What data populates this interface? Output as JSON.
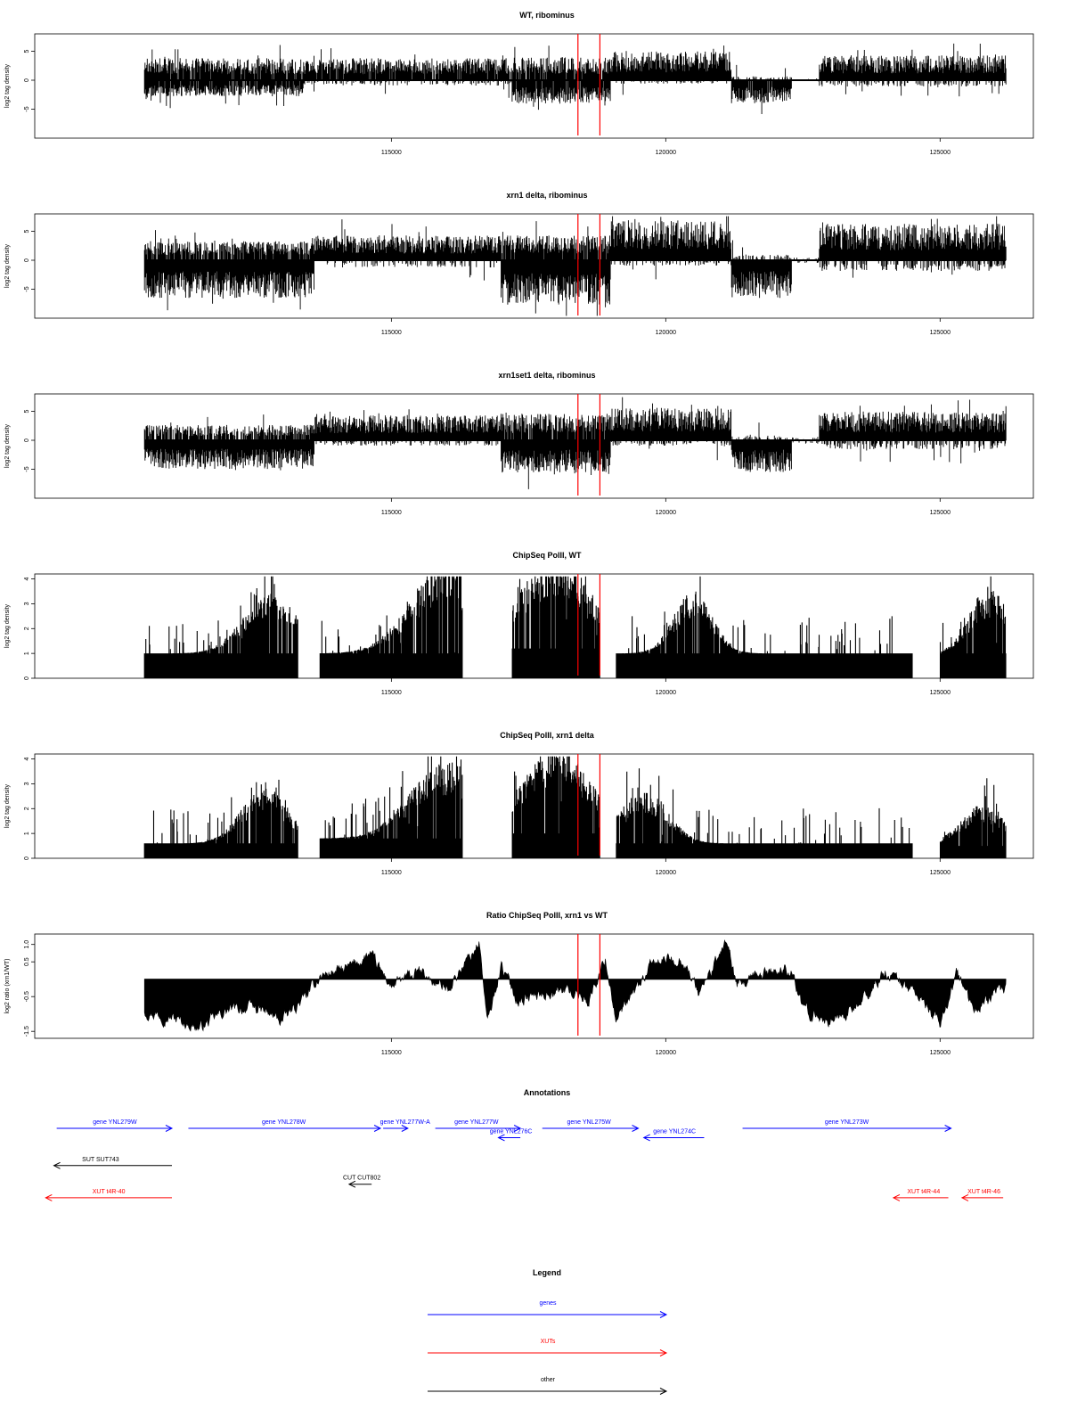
{
  "figure": {
    "panels": [
      {
        "title": "WT, ribominus",
        "ylabel": "log2 tag density",
        "type": "bipolar",
        "ylim": [
          -10,
          8
        ],
        "yticks": [
          "5",
          "0",
          "-5"
        ],
        "ytick_values": [
          5,
          0,
          -5
        ],
        "seed": 11,
        "profile": [
          {
            "from": 110500,
            "to": 113400,
            "pos": 2.3,
            "neg": 1.8,
            "posProb": 0.95,
            "negProb": 0.9
          },
          {
            "from": 113400,
            "to": 117200,
            "pos": 2.3,
            "neg": 0.6,
            "posProb": 0.95,
            "negProb": 0.25
          },
          {
            "from": 117200,
            "to": 119000,
            "pos": 2.4,
            "neg": 2.6,
            "posProb": 0.9,
            "negProb": 0.9
          },
          {
            "from": 119000,
            "to": 121200,
            "pos": 3.0,
            "neg": 0.4,
            "posProb": 1.0,
            "negProb": 0.2
          },
          {
            "from": 121200,
            "to": 122300,
            "pos": 0.4,
            "neg": 2.6,
            "posProb": 0.3,
            "negProb": 0.95
          },
          {
            "from": 122300,
            "to": 122800,
            "pos": 0.2,
            "neg": 0.2,
            "posProb": 0.05,
            "negProb": 0.05
          },
          {
            "from": 122800,
            "to": 126200,
            "pos": 2.6,
            "neg": 0.7,
            "posProb": 1.0,
            "negProb": 0.3
          }
        ]
      },
      {
        "title": "xrn1 delta, ribominus",
        "ylabel": "log2 tag density",
        "type": "bipolar",
        "ylim": [
          -10,
          8
        ],
        "yticks": [
          "5",
          "0",
          "-5"
        ],
        "ytick_values": [
          5,
          0,
          -5
        ],
        "seed": 23,
        "profile": [
          {
            "from": 110500,
            "to": 113600,
            "pos": 2.0,
            "neg": 4.2,
            "posProb": 0.85,
            "negProb": 1.0
          },
          {
            "from": 113600,
            "to": 117000,
            "pos": 2.6,
            "neg": 0.8,
            "posProb": 1.0,
            "negProb": 0.25
          },
          {
            "from": 117000,
            "to": 119000,
            "pos": 2.6,
            "neg": 5.0,
            "posProb": 0.9,
            "negProb": 1.0
          },
          {
            "from": 119000,
            "to": 121200,
            "pos": 4.2,
            "neg": 0.6,
            "posProb": 1.0,
            "negProb": 0.25
          },
          {
            "from": 121200,
            "to": 122300,
            "pos": 0.6,
            "neg": 4.2,
            "posProb": 0.3,
            "negProb": 1.0
          },
          {
            "from": 122300,
            "to": 122800,
            "pos": 0.3,
            "neg": 0.3,
            "posProb": 0.1,
            "negProb": 0.1
          },
          {
            "from": 122800,
            "to": 126200,
            "pos": 3.8,
            "neg": 1.2,
            "posProb": 1.0,
            "negProb": 0.35
          }
        ]
      },
      {
        "title": "xrn1set1 delta, ribominus",
        "ylabel": "log2 tag density",
        "type": "bipolar",
        "ylim": [
          -10,
          8
        ],
        "yticks": [
          "5",
          "0",
          "-5"
        ],
        "ytick_values": [
          5,
          0,
          -5
        ],
        "seed": 37,
        "profile": [
          {
            "from": 110500,
            "to": 113600,
            "pos": 1.6,
            "neg": 3.2,
            "posProb": 0.75,
            "negProb": 1.0
          },
          {
            "from": 113600,
            "to": 117000,
            "pos": 2.6,
            "neg": 0.6,
            "posProb": 1.0,
            "negProb": 0.25
          },
          {
            "from": 117000,
            "to": 119000,
            "pos": 2.8,
            "neg": 3.6,
            "posProb": 0.9,
            "negProb": 1.0
          },
          {
            "from": 119000,
            "to": 121200,
            "pos": 3.4,
            "neg": 0.6,
            "posProb": 1.0,
            "negProb": 0.25
          },
          {
            "from": 121200,
            "to": 122300,
            "pos": 0.5,
            "neg": 3.6,
            "posProb": 0.3,
            "negProb": 1.0
          },
          {
            "from": 122300,
            "to": 122800,
            "pos": 0.4,
            "neg": 0.4,
            "posProb": 0.15,
            "negProb": 0.15
          },
          {
            "from": 122800,
            "to": 126200,
            "pos": 3.0,
            "neg": 1.0,
            "posProb": 1.0,
            "negProb": 0.35
          }
        ]
      },
      {
        "title": "ChipSeq PolII, WT",
        "ylabel": "log2 tag density",
        "type": "density",
        "ylim": [
          0,
          4.2
        ],
        "yticks": [
          "0",
          "1",
          "2",
          "3",
          "4"
        ],
        "ytick_values": [
          0,
          1,
          2,
          3,
          4
        ],
        "seed": 53,
        "profile": [
          {
            "from": 110500,
            "to": 113300,
            "base": 1.0,
            "amp": 2.3,
            "peak": 112800,
            "width": 700
          },
          {
            "from": 113300,
            "to": 113700,
            "gap": true
          },
          {
            "from": 113700,
            "to": 116300,
            "base": 1.0,
            "amp": 3.5,
            "peak": 116000,
            "width": 900
          },
          {
            "from": 116300,
            "to": 117200,
            "gap": true
          },
          {
            "from": 117200,
            "to": 118800,
            "base": 1.2,
            "amp": 3.7,
            "peak": 118000,
            "width": 900
          },
          {
            "from": 118800,
            "to": 119100,
            "gap": true
          },
          {
            "from": 119100,
            "to": 124500,
            "base": 1.0,
            "amp": 2.4,
            "peak": 120500,
            "width": 500
          },
          {
            "from": 124500,
            "to": 125000,
            "gap": true
          },
          {
            "from": 125000,
            "to": 126200,
            "base": 1.0,
            "amp": 2.6,
            "peak": 125900,
            "width": 500
          }
        ]
      },
      {
        "title": "ChipSeq PolII, xrn1 delta",
        "ylabel": "log2 tag density",
        "type": "density",
        "ylim": [
          0,
          4.2
        ],
        "yticks": [
          "0",
          "1",
          "2",
          "3",
          "4"
        ],
        "ytick_values": [
          0,
          1,
          2,
          3,
          4
        ],
        "seed": 71,
        "profile": [
          {
            "from": 110500,
            "to": 113300,
            "base": 0.6,
            "amp": 2.2,
            "peak": 112700,
            "width": 600
          },
          {
            "from": 113300,
            "to": 113700,
            "gap": true
          },
          {
            "from": 113700,
            "to": 116300,
            "base": 0.8,
            "amp": 3.0,
            "peak": 116000,
            "width": 900
          },
          {
            "from": 116300,
            "to": 117200,
            "gap": true
          },
          {
            "from": 117200,
            "to": 118800,
            "base": 1.0,
            "amp": 3.3,
            "peak": 118000,
            "width": 900
          },
          {
            "from": 118800,
            "to": 119100,
            "gap": true
          },
          {
            "from": 119100,
            "to": 124500,
            "base": 0.6,
            "amp": 2.1,
            "peak": 119600,
            "width": 600
          },
          {
            "from": 124500,
            "to": 125000,
            "gap": true
          },
          {
            "from": 125000,
            "to": 126200,
            "base": 0.5,
            "amp": 1.6,
            "peak": 125800,
            "width": 600
          }
        ]
      },
      {
        "title": "Ratio ChipSeq PolII, xrn1 vs WT",
        "ylabel": "log2 ratio (xrn1/WT)",
        "type": "ratio",
        "ylim": [
          -1.7,
          1.3
        ],
        "yticks": [
          "1.0",
          "0.5",
          "-0.5",
          "-1.5"
        ],
        "ytick_values": [
          1.0,
          0.5,
          -0.5,
          -1.5
        ],
        "seed": 97,
        "profile": [
          {
            "x": 110500,
            "y": -0.9
          },
          {
            "x": 111000,
            "y": -1.1
          },
          {
            "x": 111500,
            "y": -1.4
          },
          {
            "x": 112000,
            "y": -0.9
          },
          {
            "x": 112500,
            "y": -0.8
          },
          {
            "x": 113000,
            "y": -1.2
          },
          {
            "x": 113500,
            "y": -0.4
          },
          {
            "x": 113700,
            "y": 0.1
          },
          {
            "x": 114200,
            "y": 0.3
          },
          {
            "x": 114600,
            "y": 0.7
          },
          {
            "x": 115000,
            "y": -0.2
          },
          {
            "x": 115500,
            "y": 0.2
          },
          {
            "x": 116000,
            "y": -0.3
          },
          {
            "x": 116500,
            "y": 0.8
          },
          {
            "x": 116600,
            "y": 1.1
          },
          {
            "x": 116750,
            "y": -1.3
          },
          {
            "x": 117000,
            "y": 0.4
          },
          {
            "x": 117300,
            "y": -0.6
          },
          {
            "x": 117800,
            "y": -0.4
          },
          {
            "x": 118200,
            "y": -0.3
          },
          {
            "x": 118600,
            "y": -0.6
          },
          {
            "x": 118900,
            "y": 0.6
          },
          {
            "x": 119100,
            "y": -1.2
          },
          {
            "x": 119500,
            "y": -0.2
          },
          {
            "x": 119800,
            "y": 0.5
          },
          {
            "x": 120300,
            "y": 0.6
          },
          {
            "x": 120600,
            "y": -0.4
          },
          {
            "x": 121000,
            "y": 0.7
          },
          {
            "x": 121100,
            "y": 1.2
          },
          {
            "x": 121300,
            "y": -0.3
          },
          {
            "x": 121800,
            "y": 0.2
          },
          {
            "x": 122300,
            "y": 0.3
          },
          {
            "x": 122500,
            "y": -0.9
          },
          {
            "x": 123000,
            "y": -1.2
          },
          {
            "x": 123500,
            "y": -0.8
          },
          {
            "x": 124000,
            "y": 0.2
          },
          {
            "x": 124500,
            "y": -0.3
          },
          {
            "x": 125000,
            "y": -1.3
          },
          {
            "x": 125300,
            "y": 0.2
          },
          {
            "x": 125600,
            "y": -0.9
          },
          {
            "x": 126000,
            "y": -0.4
          },
          {
            "x": 126200,
            "y": -0.3
          }
        ]
      }
    ],
    "xticks": [
      115000,
      120000,
      125000
    ],
    "xtick_labels": [
      "115000",
      "120000",
      "125000"
    ],
    "xrange": [
      108500,
      126700
    ],
    "data_xrange": [
      110500,
      126200
    ],
    "red_lines": [
      118400,
      118800
    ],
    "red_line_color": "#ff0000",
    "bar_color": "#000000"
  },
  "annotations": {
    "title": "Annotations",
    "features": [
      {
        "label": "gene YNL279W",
        "type": "gene",
        "x1": 108900,
        "x2": 111000,
        "dir": "right",
        "row": 0,
        "label_x": 109960
      },
      {
        "label": "gene YNL278W",
        "type": "gene",
        "x1": 111300,
        "x2": 114800,
        "dir": "right",
        "row": 0,
        "label_x": 113040
      },
      {
        "label": "gene YNL277W-A",
        "type": "gene",
        "x1": 114850,
        "x2": 115300,
        "dir": "right",
        "row": 0,
        "label_x": 115250
      },
      {
        "label": "gene YNL277W",
        "type": "gene",
        "x1": 115800,
        "x2": 117350,
        "dir": "right",
        "row": 0,
        "label_x": 116550
      },
      {
        "label": "gene YNL276C",
        "type": "gene",
        "x1": 116950,
        "x2": 117350,
        "dir": "left",
        "row": 0.55,
        "label_x": 117180
      },
      {
        "label": "gene YNL275W",
        "type": "gene",
        "x1": 117750,
        "x2": 119500,
        "dir": "right",
        "row": 0,
        "label_x": 118600
      },
      {
        "label": "gene YNL274C",
        "type": "gene",
        "x1": 119600,
        "x2": 120700,
        "dir": "left",
        "row": 0.55,
        "label_x": 120160
      },
      {
        "label": "gene YNL273W",
        "type": "gene",
        "x1": 121400,
        "x2": 125200,
        "dir": "right",
        "row": 0,
        "label_x": 123300
      },
      {
        "label": "SUT SUT743",
        "type": "other",
        "x1": 108850,
        "x2": 111000,
        "dir": "left",
        "row": 2.2,
        "label_x": 109700
      },
      {
        "label": "CUT CUT802",
        "type": "other",
        "x1": 114230,
        "x2": 114640,
        "dir": "left",
        "row": 3.3,
        "label_x": 114460
      },
      {
        "label": "XUT t4R-40",
        "type": "xut",
        "x1": 108700,
        "x2": 111000,
        "dir": "left",
        "row": 4.1,
        "label_x": 109850
      },
      {
        "label": "XUT t4R-44",
        "type": "xut",
        "x1": 124150,
        "x2": 125150,
        "dir": "left",
        "row": 4.1,
        "label_x": 124700
      },
      {
        "label": "XUT t4R-46",
        "type": "xut",
        "x1": 125400,
        "x2": 126150,
        "dir": "left",
        "row": 4.1,
        "label_x": 125800
      }
    ]
  },
  "legend": {
    "title": "Legend",
    "items": [
      {
        "label": "genes",
        "type": "gene"
      },
      {
        "label": "XUTs",
        "type": "xut"
      },
      {
        "label": "other",
        "type": "other"
      }
    ]
  },
  "colors": {
    "gene": "#0000ff",
    "xut": "#ff0000",
    "other": "#000000"
  },
  "chart_data": {
    "type": "bar",
    "x_axis_ticks": [
      "115000",
      "120000",
      "125000"
    ],
    "x_range": [
      110500,
      126200
    ],
    "series": [
      {
        "name": "WT, ribominus",
        "ylabel": "log2 tag density",
        "yticks": [
          5,
          0,
          -5
        ],
        "ylim": [
          -10,
          8
        ],
        "x": [
          111000,
          113000,
          115000,
          117000,
          118000,
          119500,
          121500,
          122500,
          124000,
          126000
        ],
        "values": [
          3.5,
          3.0,
          3.0,
          2.5,
          -4.5,
          4.5,
          -3.5,
          0,
          4.5,
          3.5
        ]
      },
      {
        "name": "xrn1 delta, ribominus",
        "ylabel": "log2 tag density",
        "yticks": [
          5,
          0,
          -5
        ],
        "ylim": [
          -10,
          8
        ],
        "x": [
          111000,
          113000,
          115000,
          117000,
          118000,
          119500,
          121500,
          122500,
          124000,
          126000
        ],
        "values": [
          -6.0,
          -5.0,
          3.5,
          3.5,
          -8.0,
          6.0,
          -6.0,
          0,
          5.5,
          5.0
        ]
      },
      {
        "name": "xrn1set1 delta, ribominus",
        "ylabel": "log2 tag density",
        "yticks": [
          5,
          0,
          -5
        ],
        "ylim": [
          -10,
          8
        ],
        "x": [
          111000,
          113000,
          115000,
          117000,
          118000,
          119500,
          121500,
          122500,
          124000,
          126000
        ],
        "values": [
          -4.5,
          -4.5,
          3.5,
          3.5,
          -6.0,
          5.0,
          -5.5,
          0,
          4.5,
          4.0
        ]
      },
      {
        "name": "ChipSeq PolII, WT",
        "ylabel": "log2 tag density",
        "yticks": [
          0,
          1,
          2,
          3,
          4
        ],
        "ylim": [
          0,
          4.2
        ],
        "x": [
          111000,
          112800,
          114500,
          116000,
          118000,
          119500,
          120500,
          122500,
          124000,
          125900
        ],
        "values": [
          1.5,
          3.0,
          2.0,
          4.0,
          4.2,
          2.0,
          2.5,
          2.0,
          2.0,
          2.8
        ]
      },
      {
        "name": "ChipSeq PolII, xrn1 delta",
        "ylabel": "log2 tag density",
        "yticks": [
          0,
          1,
          2,
          3,
          4
        ],
        "ylim": [
          0,
          4.2
        ],
        "x": [
          111000,
          112700,
          114500,
          116000,
          118000,
          119600,
          120500,
          122500,
          124000,
          125800
        ],
        "values": [
          1.0,
          2.2,
          2.5,
          3.2,
          3.4,
          2.2,
          2.0,
          1.5,
          1.5,
          1.6
        ]
      },
      {
        "name": "Ratio ChipSeq PolII, xrn1 vs WT",
        "ylabel": "log2 ratio (xrn1/WT)",
        "yticks": [
          1.0,
          0.5,
          -0.5,
          -1.5
        ],
        "ylim": [
          -1.7,
          1.3
        ],
        "x": [
          110500,
          111500,
          113000,
          114600,
          116600,
          116750,
          119100,
          121100,
          123000,
          125000,
          126200
        ],
        "values": [
          -0.9,
          -1.4,
          -1.2,
          0.7,
          1.1,
          -1.3,
          -1.2,
          1.2,
          -1.2,
          -1.3,
          -0.3
        ]
      }
    ],
    "annotations_title": "Annotations",
    "legend_title": "Legend",
    "grid": false
  }
}
